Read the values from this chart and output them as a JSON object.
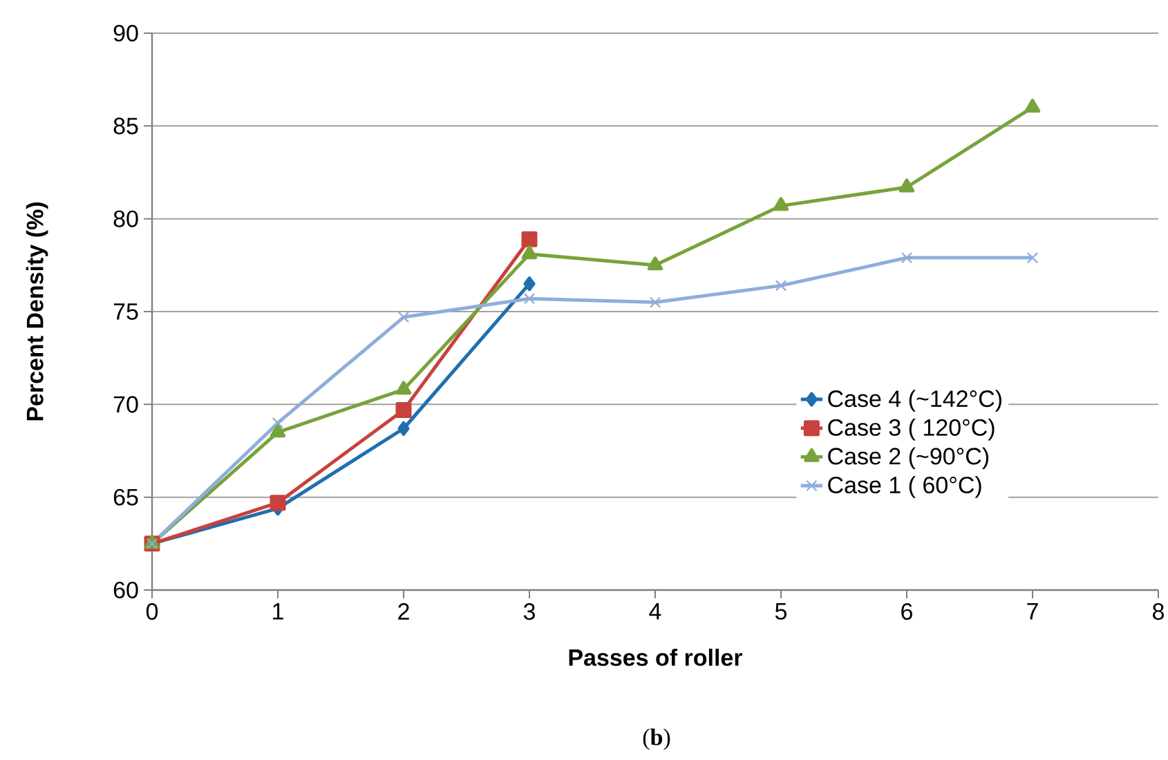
{
  "chart_data": {
    "type": "line",
    "xlabel": "Passes of roller",
    "ylabel": "Percent Density (%)",
    "annotations": [
      "(**b**)"
    ],
    "x": [
      0,
      1,
      2,
      3,
      4,
      5,
      6,
      7
    ],
    "series": [
      {
        "name": "Case 4 (~142°C)",
        "color": "#1f6fae",
        "marker": "diamond",
        "values": [
          62.5,
          64.4,
          68.7,
          76.5,
          null,
          null,
          null,
          null
        ]
      },
      {
        "name": "Case 3 (  120°C)",
        "color": "#c9413c",
        "marker": "square",
        "values": [
          62.5,
          64.7,
          69.7,
          78.9,
          null,
          null,
          null,
          null
        ]
      },
      {
        "name": "Case 2 (~90°C)",
        "color": "#77a33b",
        "marker": "triangle",
        "values": [
          62.5,
          68.5,
          70.8,
          78.1,
          77.5,
          80.7,
          81.7,
          86.0
        ]
      },
      {
        "name": "Case 1 (  60°C)",
        "color": "#8eaedb",
        "marker": "cross",
        "values": [
          62.5,
          69.0,
          74.7,
          75.7,
          75.5,
          76.4,
          77.9,
          77.9
        ]
      }
    ],
    "xlim": [
      0,
      8
    ],
    "xticks": [
      0,
      1,
      2,
      3,
      4,
      5,
      6,
      7,
      8
    ],
    "ylim": [
      60,
      90
    ],
    "yticks": [
      60,
      65,
      70,
      75,
      80,
      85,
      90
    ],
    "grid": "y",
    "legend": "right",
    "line_style": "solid"
  }
}
